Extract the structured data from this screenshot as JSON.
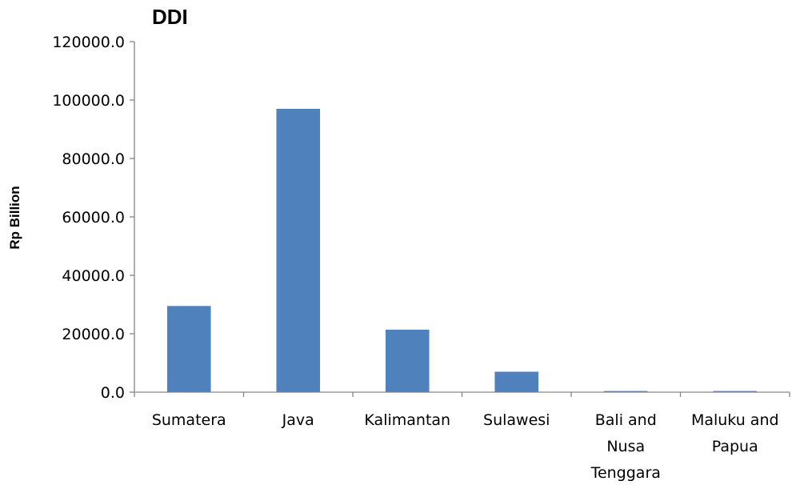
{
  "chart_data": {
    "type": "bar",
    "title": "DDI",
    "xlabel": "",
    "ylabel": "Rp Billion",
    "categories": [
      [
        "Sumatera"
      ],
      [
        "Java"
      ],
      [
        "Kalimantan"
      ],
      [
        "Sulawesi"
      ],
      [
        "Bali and",
        "Nusa",
        "Tenggara"
      ],
      [
        "Maluku and",
        "Papua"
      ]
    ],
    "values": [
      29500,
      97000,
      21400,
      7000,
      400,
      400
    ],
    "ylim": [
      0,
      120000
    ],
    "yticks": [
      "0.0",
      "20000.0",
      "40000.0",
      "60000.0",
      "80000.0",
      "100000.0",
      "120000.0"
    ],
    "grid": false,
    "legend": "none",
    "bar_color": "#4F81BD"
  }
}
